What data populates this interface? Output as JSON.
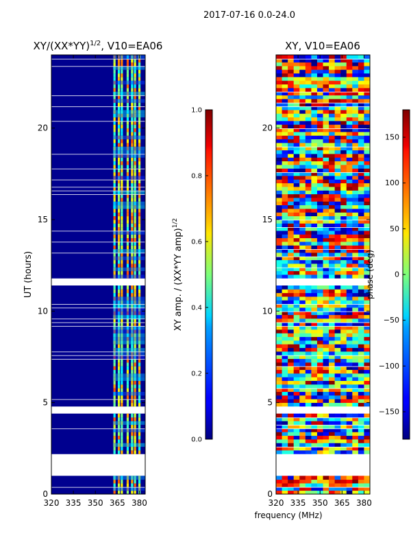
{
  "suptitle": "2017-07-16 0.0-24.0",
  "chart_data": [
    {
      "type": "heatmap",
      "title": "XY/(XX*YY)",
      "title_sup": "1/2",
      "title_rest": ", V10=EA06",
      "xlabel": "",
      "ylabel": "UT (hours)",
      "xlim": [
        320,
        384
      ],
      "ylim": [
        0,
        24
      ],
      "xticks": [
        320,
        335,
        350,
        365,
        380
      ],
      "yticks": [
        0,
        5,
        10,
        15,
        20
      ],
      "bright_columns": [
        363,
        366,
        368,
        372,
        375,
        377,
        380
      ],
      "gaps_hours": [
        [
          1.0,
          2.1
        ],
        [
          4.4,
          4.8
        ],
        [
          11.4,
          11.7
        ]
      ],
      "colorbar": {
        "label": "XY amp. / (XX*YY amp)",
        "label_sup": "1/2",
        "range": [
          0.0,
          1.0
        ],
        "ticks": [
          "0.0",
          "0.2",
          "0.4",
          "0.6",
          "0.8",
          "1.0"
        ],
        "colormap": "jet"
      }
    },
    {
      "type": "heatmap",
      "title": "XY, V10=EA06",
      "xlabel": "frequency (MHz)",
      "ylabel": "",
      "xlim": [
        320,
        384
      ],
      "ylim": [
        0,
        24
      ],
      "xticks": [
        320,
        335,
        350,
        365,
        380
      ],
      "yticks": [
        0,
        5,
        10,
        15,
        20
      ],
      "gaps_hours": [
        [
          1.0,
          2.1
        ],
        [
          4.4,
          4.8
        ],
        [
          11.4,
          11.7
        ]
      ],
      "colorbar": {
        "label": "phase (deg)",
        "range": [
          -180,
          180
        ],
        "ticks": [
          "−150",
          "−100",
          "−50",
          "0",
          "50",
          "100",
          "150"
        ],
        "tick_values": [
          -150,
          -100,
          -50,
          0,
          50,
          100,
          150
        ],
        "colormap": "jet"
      }
    }
  ]
}
